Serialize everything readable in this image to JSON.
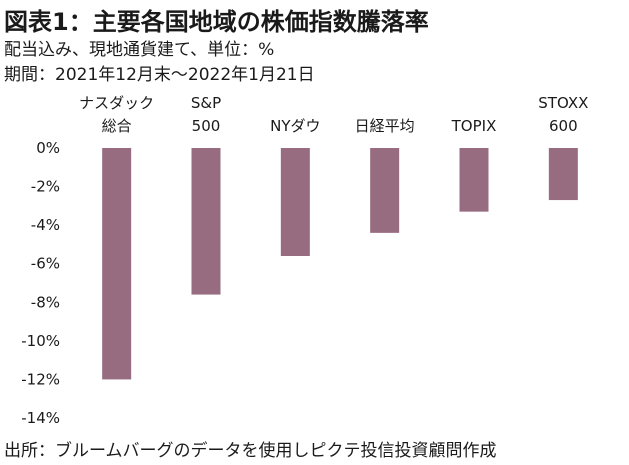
{
  "header": {
    "title": "図表1：主要各国地域の株価指数騰落率",
    "subtitle_1": "配当込み、現地通貨建て、単位：%",
    "subtitle_2": "期間：2021年12月末～2022年1月21日"
  },
  "footer": {
    "source": "出所：ブルームバーグのデータを使用しピクテ投信投資顧問作成"
  },
  "colors": {
    "bar": "#976b80",
    "gridline": "#d9d9d9",
    "text": "#1a1a1a"
  },
  "chart_data": {
    "type": "bar",
    "categories": [
      [
        "ナスダック",
        "総合"
      ],
      [
        "S&P",
        "500"
      ],
      [
        "NYダウ"
      ],
      [
        "日経平均"
      ],
      [
        "TOPIX"
      ],
      [
        "STOXX",
        "600"
      ]
    ],
    "values": [
      -12.0,
      -7.6,
      -5.6,
      -4.4,
      -3.3,
      -2.7
    ],
    "y_ticks": [
      "0%",
      "-2%",
      "-4%",
      "-6%",
      "-8%",
      "-10%",
      "-12%",
      "-14%"
    ],
    "ylim": [
      -14,
      0
    ],
    "grid": true,
    "legend": "none"
  }
}
